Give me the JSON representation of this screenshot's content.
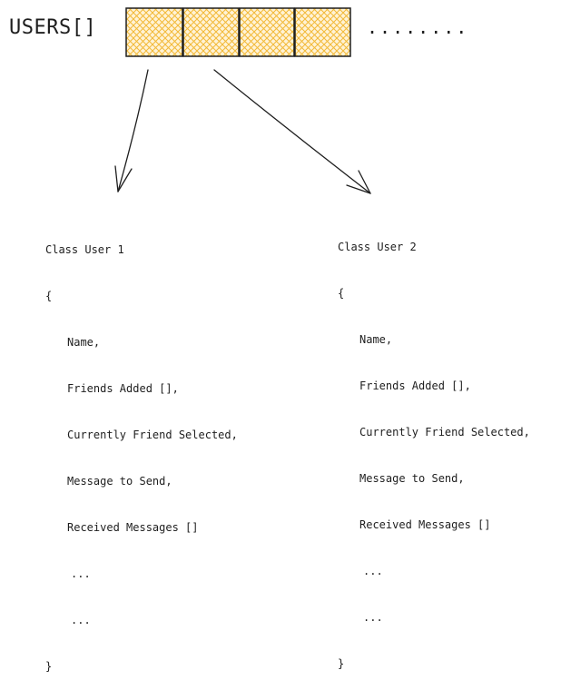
{
  "array": {
    "label": "USERS[]",
    "cell_count": 4,
    "fill_color": "#f4c55a",
    "more": "........"
  },
  "classes": [
    {
      "header": "Class User 1",
      "open": "{",
      "fields": [
        "Name,",
        "Friends Added [],",
        "Currently Friend Selected,",
        "Message to Send,",
        "Received Messages []"
      ],
      "more": [
        "...",
        "..."
      ],
      "close": "}"
    },
    {
      "header": "Class User 2",
      "open": "{",
      "fields": [
        "Name,",
        "Friends Added [],",
        "Currently Friend Selected,",
        "Message to Send,",
        "Received Messages []"
      ],
      "more": [
        "...",
        "..."
      ],
      "close": "}"
    }
  ]
}
